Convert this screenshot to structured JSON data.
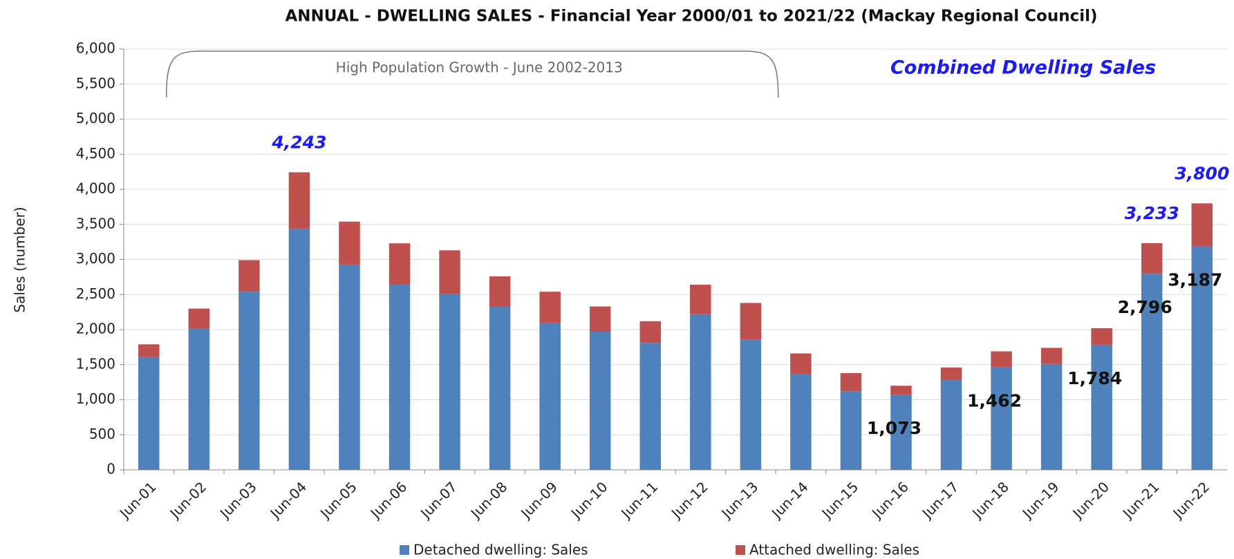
{
  "chart_data": {
    "type": "stacked-bar",
    "title": "ANNUAL - DWELLING SALES - Financial Year 2000/01 to 2021/22 (Mackay Regional Council)",
    "y_label": "Sales (number)",
    "categories": [
      "Jun-01",
      "Jun-02",
      "Jun-03",
      "Jun-04",
      "Jun-05",
      "Jun-06",
      "Jun-07",
      "Jun-08",
      "Jun-09",
      "Jun-10",
      "Jun-11",
      "Jun-12",
      "Jun-13",
      "Jun-14",
      "Jun-15",
      "Jun-16",
      "Jun-17",
      "Jun-18",
      "Jun-19",
      "Jun-20",
      "Jun-21",
      "Jun-22"
    ],
    "series": [
      {
        "name": "Detached dwelling: Sales",
        "color": "#4f81bd",
        "values": [
          1610,
          2020,
          2540,
          3440,
          2920,
          2640,
          2510,
          2330,
          2090,
          1970,
          1810,
          2220,
          1860,
          1370,
          1120,
          1073,
          1280,
          1462,
          1510,
          1784,
          2796,
          3187
        ],
        "value_labels": [
          null,
          null,
          null,
          null,
          null,
          null,
          null,
          null,
          null,
          null,
          null,
          null,
          null,
          null,
          null,
          "1,073",
          null,
          "1,462",
          null,
          "1,784",
          "2,796",
          "3,187"
        ]
      },
      {
        "name": "Attached dwelling: Sales",
        "color": "#c0504d",
        "values": [
          180,
          280,
          450,
          803,
          620,
          590,
          620,
          430,
          450,
          360,
          310,
          420,
          520,
          290,
          260,
          127,
          180,
          228,
          230,
          236,
          437,
          613
        ]
      }
    ],
    "total_labels": [
      {
        "category": "Jun-04",
        "value": 4243,
        "label": "4,243"
      },
      {
        "category": "Jun-21",
        "value": 3233,
        "label": "3,233"
      },
      {
        "category": "Jun-22",
        "value": 3800,
        "label": "3,800"
      }
    ],
    "annotations": [
      "High Population Growth - June 2002-2013",
      "Combined Dwelling Sales"
    ],
    "ylim": [
      0,
      6000
    ],
    "yticks": [
      0,
      500,
      {
        "value": 1000,
        "label": "1,000"
      },
      {
        "value": 1500,
        "label": "1,500"
      },
      {
        "value": 2000,
        "label": "2,000"
      },
      {
        "value": 2500,
        "label": "2,500"
      },
      {
        "value": 3000,
        "label": "3,000"
      },
      {
        "value": 3500,
        "label": "3,500"
      },
      {
        "value": 4000,
        "label": "4,000"
      },
      {
        "value": 4500,
        "label": "4,500"
      },
      {
        "value": 5000,
        "label": "5,000"
      },
      {
        "value": 5500,
        "label": "5,500"
      },
      {
        "value": 6000,
        "label": "6,000"
      }
    ],
    "grid": true
  }
}
